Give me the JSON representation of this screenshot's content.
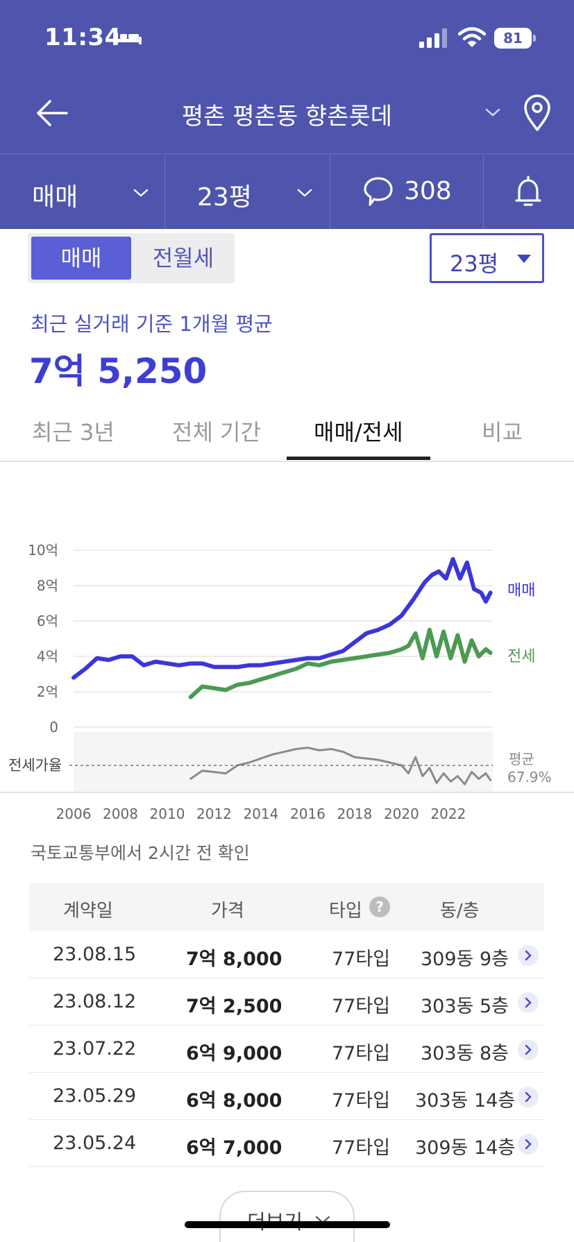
{
  "status_bar": {
    "time": "11:34",
    "battery": "81"
  },
  "header": {
    "title": "평촌 평촌동 향촌롯데"
  },
  "filters": {
    "deal_type": "매매",
    "size": "23평",
    "comment_count": "308"
  },
  "segment": {
    "sale": "매매",
    "rent": "전월세"
  },
  "size_dropdown": {
    "value": "23평"
  },
  "summary": {
    "caption": "최근 실거래 기준 1개월 평균",
    "price": "7억 5,250"
  },
  "tabs": [
    {
      "label": "최근 3년"
    },
    {
      "label": "전체 기간"
    },
    {
      "label": "매매/전세"
    },
    {
      "label": "비교"
    }
  ],
  "colors": {
    "header": "#4f55ad",
    "sale": "#3b36d8",
    "jeonse": "#4c9a52",
    "ratio": "#8a8a8a"
  },
  "chart_data": {
    "type": "line",
    "y_ticks": [
      "10억",
      "8억",
      "6억",
      "4억",
      "2억",
      "0"
    ],
    "ylim": [
      0,
      10
    ],
    "x_ticks": [
      "2006",
      "2008",
      "2010",
      "2012",
      "2014",
      "2016",
      "2018",
      "2020",
      "2022"
    ],
    "xlim": [
      2006,
      2023.9
    ],
    "ratio_label": "전세가율",
    "ratio_avg_label": "평균",
    "ratio_avg_value": "67.9%",
    "ratio_range": [
      50,
      90
    ],
    "series": [
      {
        "name": "매매",
        "x": [
          2006,
          2006.5,
          2007,
          2007.5,
          2008,
          2008.5,
          2009,
          2009.5,
          2010,
          2010.5,
          2011,
          2011.5,
          2012,
          2012.5,
          2013,
          2013.5,
          2014,
          2014.5,
          2015,
          2015.5,
          2016,
          2016.5,
          2017,
          2017.5,
          2018,
          2018.5,
          2019,
          2019.5,
          2020,
          2020.5,
          2021,
          2021.3,
          2021.6,
          2021.9,
          2022.2,
          2022.5,
          2022.8,
          2023.1,
          2023.4,
          2023.6,
          2023.8
        ],
        "values": [
          2.8,
          3.3,
          3.9,
          3.8,
          4.0,
          4.0,
          3.5,
          3.7,
          3.6,
          3.5,
          3.6,
          3.6,
          3.4,
          3.4,
          3.4,
          3.5,
          3.5,
          3.6,
          3.7,
          3.8,
          3.9,
          3.9,
          4.1,
          4.3,
          4.8,
          5.3,
          5.5,
          5.8,
          6.3,
          7.2,
          8.2,
          8.6,
          8.8,
          8.4,
          9.5,
          8.4,
          9.3,
          7.8,
          7.6,
          7.1,
          7.6
        ]
      },
      {
        "name": "전세",
        "x": [
          2011,
          2011.5,
          2012,
          2012.5,
          2013,
          2013.5,
          2014,
          2014.5,
          2015,
          2015.5,
          2016,
          2016.5,
          2017,
          2017.5,
          2018,
          2018.5,
          2019,
          2019.5,
          2020,
          2020.3,
          2020.6,
          2020.9,
          2021.2,
          2021.5,
          2021.8,
          2022.1,
          2022.4,
          2022.7,
          2023,
          2023.3,
          2023.6,
          2023.8
        ],
        "values": [
          1.7,
          2.3,
          2.2,
          2.1,
          2.4,
          2.5,
          2.7,
          2.9,
          3.1,
          3.3,
          3.6,
          3.5,
          3.7,
          3.8,
          3.9,
          4.0,
          4.1,
          4.2,
          4.4,
          4.6,
          5.3,
          3.9,
          5.5,
          4.0,
          5.4,
          3.9,
          5.2,
          3.7,
          4.9,
          4.0,
          4.4,
          4.2
        ]
      },
      {
        "name": "전세가율",
        "x": [
          2011,
          2011.5,
          2012,
          2012.5,
          2013,
          2013.5,
          2014,
          2014.5,
          2015,
          2015.5,
          2016,
          2016.5,
          2017,
          2017.5,
          2018,
          2018.5,
          2019,
          2019.5,
          2020,
          2020.3,
          2020.6,
          2020.9,
          2021.2,
          2021.5,
          2021.8,
          2022.1,
          2022.4,
          2022.7,
          2023,
          2023.3,
          2023.6,
          2023.8
        ],
        "values": [
          58,
          64,
          63,
          62,
          68,
          70,
          73,
          76,
          78,
          80,
          81,
          79,
          80,
          78,
          74,
          73,
          72,
          70,
          68,
          62,
          74,
          60,
          66,
          55,
          62,
          56,
          60,
          54,
          63,
          58,
          62,
          57
        ]
      }
    ]
  },
  "source_note": "국토교통부에서 2시간 전 확인",
  "table": {
    "headers": {
      "date": "계약일",
      "price": "가격",
      "type": "타입",
      "dong": "동/층"
    },
    "help_icon": "?",
    "rows": [
      {
        "date": "23.08.15",
        "price": "7억 8,000",
        "type": "77타입",
        "dong": "309동 9층"
      },
      {
        "date": "23.08.12",
        "price": "7억 2,500",
        "type": "77타입",
        "dong": "303동 5층"
      },
      {
        "date": "23.07.22",
        "price": "6억 9,000",
        "type": "77타입",
        "dong": "303동 8층"
      },
      {
        "date": "23.05.29",
        "price": "6억 8,000",
        "type": "77타입",
        "dong": "303동 14층"
      },
      {
        "date": "23.05.24",
        "price": "6억 7,000",
        "type": "77타입",
        "dong": "309동 14층"
      }
    ]
  },
  "more_button": {
    "label": "더보기"
  }
}
